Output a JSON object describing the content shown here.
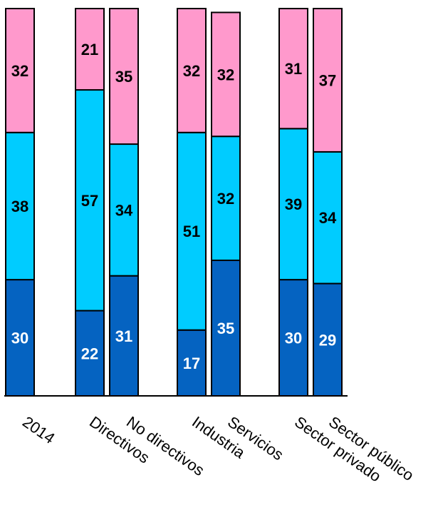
{
  "chart_data": {
    "type": "bar",
    "stacked": true,
    "categories": [
      "2014",
      "Directivos",
      "No directivos",
      "Industria",
      "Servicios",
      "Sector privado",
      "Sector público"
    ],
    "series": [
      {
        "values": [
          30,
          22,
          31,
          17,
          35,
          30,
          29
        ],
        "color": "#0563C1",
        "label_color": "#ffffff"
      },
      {
        "values": [
          38,
          57,
          34,
          51,
          32,
          39,
          34
        ],
        "color": "#00CCFF",
        "label_color": "#000000"
      },
      {
        "values": [
          32,
          21,
          35,
          32,
          32,
          31,
          37
        ],
        "color": "#FF99CC",
        "label_color": "#000000"
      }
    ],
    "totals": [
      100,
      100,
      100,
      100,
      99,
      100,
      100
    ],
    "ylim": [
      0,
      100
    ],
    "grid": false,
    "legend": "none"
  }
}
